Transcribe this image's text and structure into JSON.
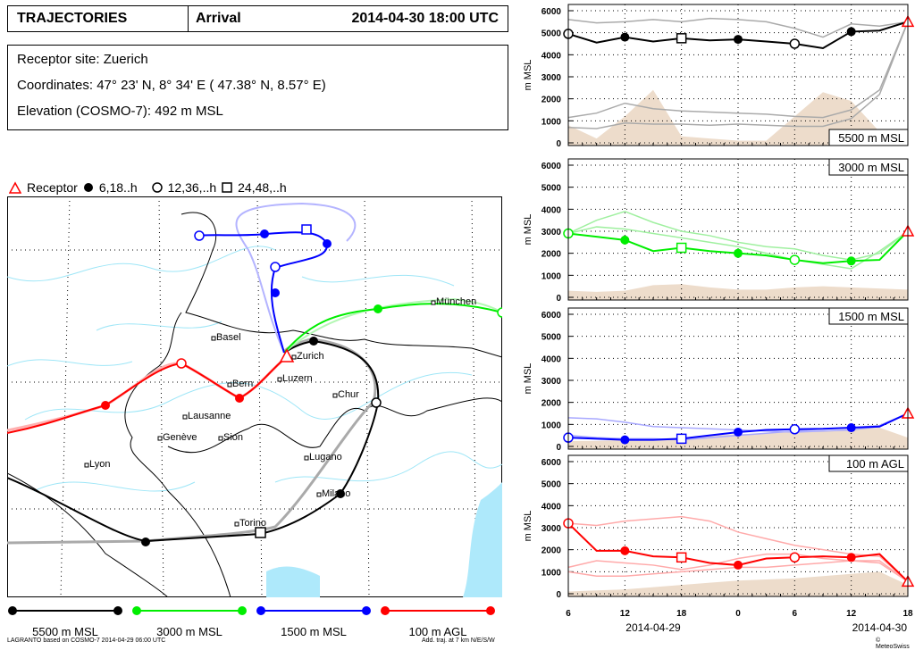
{
  "header": {
    "title": "TRAJECTORIES",
    "mode": "Arrival",
    "datetime": "2014-04-30 18:00 UTC"
  },
  "info": {
    "site": "Receptor site: Zuerich",
    "coordinates": "Coordinates:  47° 23' N,  8° 34' E  ( 47.38° N,   8.57° E)",
    "elevation": "Elevation (COSMO-7):    492 m MSL"
  },
  "legend": {
    "receptor": "Receptor",
    "filled": "6,18..h",
    "open_circle": "12,36,..h",
    "square": "24,48,..h"
  },
  "map": {
    "cities": [
      "Basel",
      "Zurich",
      "Bern",
      "Luzern",
      "Chur",
      "Lausanne",
      "Genève",
      "Sion",
      "Lugano",
      "Milano",
      "Torino",
      "Lyon",
      "München"
    ]
  },
  "series_legend": [
    {
      "label": "5500 m MSL",
      "color": "#000000"
    },
    {
      "label": "3000 m MSL",
      "color": "#00ee00"
    },
    {
      "label": "1500 m MSL",
      "color": "#0000ff"
    },
    {
      "label": "100 m AGL",
      "color": "#ff0000"
    }
  ],
  "footer": {
    "left": "LAGRANTO based on COSMO-7 2014-04-29 06:00 UTC",
    "middle": "Add. traj. at 7 km N/E/S/W",
    "right": "© MeteoSwiss"
  },
  "chart_data": [
    {
      "type": "line",
      "title": "5500 m MSL",
      "ylabel": "m MSL",
      "ylim": [
        0,
        6000
      ],
      "yticks": [
        0,
        1000,
        2000,
        3000,
        4000,
        5000,
        6000
      ],
      "xticks": [
        "6",
        "12",
        "18",
        "0",
        "6",
        "12",
        "18"
      ],
      "dates": [
        "2014-04-29",
        "2014-04-30"
      ],
      "color": "#000000",
      "hours_before_arrival": [
        -36,
        -33,
        -30,
        -27,
        -24,
        -21,
        -18,
        -15,
        -12,
        -9,
        -6,
        -3,
        0
      ],
      "main": [
        4950,
        4550,
        4800,
        4600,
        4750,
        4650,
        4700,
        4600,
        4500,
        4300,
        5050,
        5100,
        5500
      ],
      "additional": [
        [
          5600,
          5450,
          5500,
          5600,
          5500,
          5650,
          5600,
          5500,
          5200,
          4800,
          5400,
          5300,
          5500
        ],
        [
          1150,
          1350,
          1800,
          1550,
          1450,
          1400,
          1350,
          1300,
          1200,
          1150,
          1500,
          2400,
          5500
        ],
        [
          700,
          650,
          900,
          850,
          850,
          800,
          850,
          800,
          750,
          750,
          1100,
          2200,
          5500
        ]
      ],
      "topography": [
        800,
        200,
        1200,
        2400,
        300,
        200,
        100,
        100,
        1200,
        2300,
        1900,
        500,
        400
      ]
    },
    {
      "type": "line",
      "title": "3000 m MSL",
      "ylabel": "m MSL",
      "ylim": [
        0,
        6000
      ],
      "yticks": [
        0,
        1000,
        2000,
        3000,
        4000,
        5000,
        6000
      ],
      "color": "#00ee00",
      "hours_before_arrival": [
        -36,
        -33,
        -30,
        -27,
        -24,
        -21,
        -18,
        -15,
        -12,
        -9,
        -6,
        -3,
        0
      ],
      "main": [
        2900,
        2750,
        2600,
        2100,
        2250,
        2100,
        2000,
        1900,
        1700,
        1550,
        1650,
        1700,
        3000
      ],
      "additional": [
        [
          2900,
          3500,
          3900,
          3400,
          3000,
          2800,
          2500,
          2300,
          2200,
          1900,
          1700,
          2000,
          3000
        ],
        [
          2900,
          3200,
          3100,
          2900,
          2700,
          2500,
          2300,
          2000,
          1700,
          1500,
          1300,
          2100,
          3000
        ]
      ],
      "topography": [
        300,
        250,
        300,
        550,
        600,
        450,
        350,
        350,
        450,
        500,
        450,
        400,
        350
      ]
    },
    {
      "type": "line",
      "title": "1500 m MSL",
      "ylabel": "m MSL",
      "ylim": [
        0,
        6000
      ],
      "yticks": [
        0,
        1000,
        2000,
        3000,
        4000,
        5000,
        6000
      ],
      "color": "#0000ff",
      "hours_before_arrival": [
        -36,
        -33,
        -30,
        -27,
        -24,
        -21,
        -18,
        -15,
        -12,
        -9,
        -6,
        -3,
        0
      ],
      "main": [
        400,
        350,
        300,
        300,
        350,
        500,
        650,
        750,
        780,
        800,
        850,
        900,
        1500
      ],
      "additional": [
        [
          1300,
          1250,
          1100,
          900,
          850,
          800,
          750,
          700,
          650,
          700,
          750,
          900,
          1500
        ],
        [
          500,
          400,
          350,
          350,
          300,
          400,
          500,
          600,
          700,
          800,
          850,
          950,
          1500
        ]
      ],
      "topography": [
        250,
        250,
        300,
        350,
        400,
        500,
        550,
        600,
        650,
        700,
        800,
        850,
        400
      ]
    },
    {
      "type": "line",
      "title": "100 m AGL",
      "ylabel": "m MSL",
      "ylim": [
        0,
        6000
      ],
      "yticks": [
        0,
        1000,
        2000,
        3000,
        4000,
        5000,
        6000
      ],
      "color": "#ff0000",
      "hours_before_arrival": [
        -36,
        -33,
        -30,
        -27,
        -24,
        -21,
        -18,
        -15,
        -12,
        -9,
        -6,
        -3,
        0
      ],
      "main": [
        3200,
        1950,
        1950,
        1700,
        1650,
        1400,
        1300,
        1600,
        1650,
        1700,
        1650,
        1800,
        550
      ],
      "additional": [
        [
          3200,
          3100,
          3300,
          3400,
          3500,
          3300,
          2800,
          2500,
          2200,
          2000,
          1800,
          1700,
          550
        ],
        [
          1200,
          1500,
          1400,
          1300,
          1100,
          1300,
          1600,
          1800,
          1800,
          1600,
          1500,
          1400,
          550
        ],
        [
          1000,
          800,
          800,
          900,
          1000,
          1100,
          1200,
          1200,
          1300,
          1400,
          1500,
          1500,
          550
        ]
      ],
      "topography": [
        100,
        150,
        200,
        300,
        400,
        500,
        600,
        650,
        700,
        800,
        900,
        1000,
        400
      ]
    }
  ]
}
